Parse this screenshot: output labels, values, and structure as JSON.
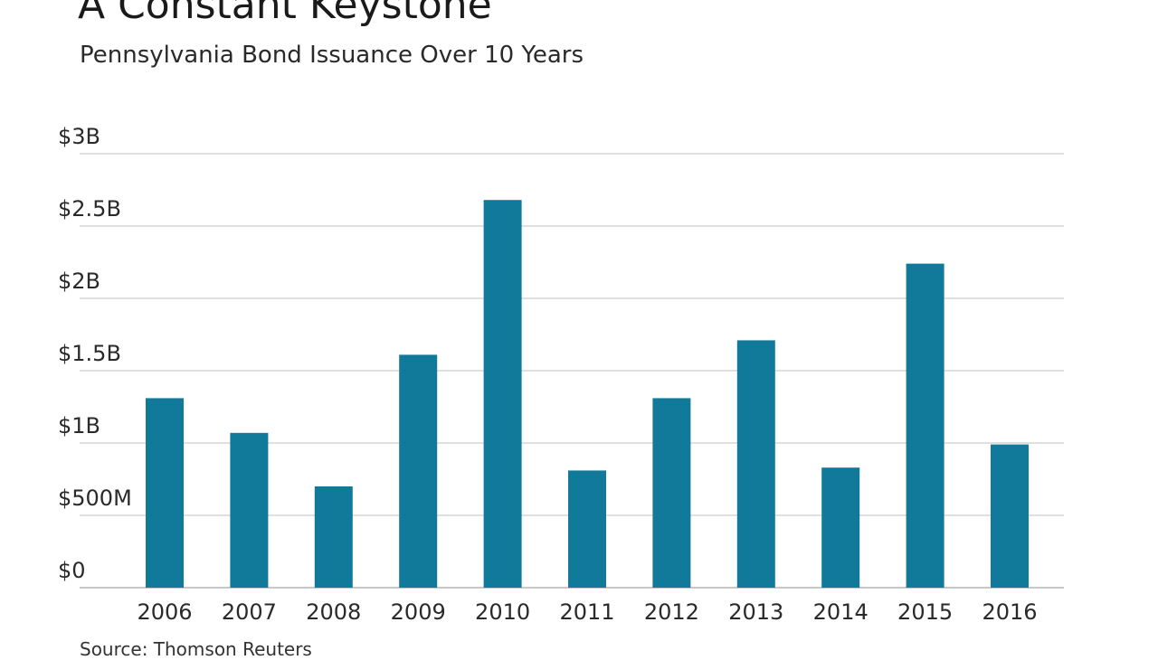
{
  "title": "A Constant Keystone",
  "subtitle": "Pennsylvania Bond Issuance Over 10 Years",
  "source": "Source: Thomson Reuters",
  "colors": {
    "bar": "#117a9a",
    "gridline": "#d6d6d6",
    "baseline": "#c8c8c8",
    "text": "#2a2a2a"
  },
  "chart_data": {
    "type": "bar",
    "title": "A Constant Keystone",
    "subtitle": "Pennsylvania Bond Issuance Over 10 Years",
    "xlabel": "",
    "ylabel": "",
    "categories": [
      "2006",
      "2007",
      "2008",
      "2009",
      "2010",
      "2011",
      "2012",
      "2013",
      "2014",
      "2015",
      "2016"
    ],
    "values": [
      1.31,
      1.07,
      0.7,
      1.61,
      2.68,
      0.81,
      1.31,
      1.71,
      0.83,
      2.24,
      0.99
    ],
    "unit": "billions USD",
    "ylim": [
      0,
      3
    ],
    "yticks": [
      {
        "value": 0,
        "label": "$0"
      },
      {
        "value": 0.5,
        "label": "$500M"
      },
      {
        "value": 1,
        "label": "$1B"
      },
      {
        "value": 1.5,
        "label": "$1.5B"
      },
      {
        "value": 2,
        "label": "$2B"
      },
      {
        "value": 2.5,
        "label": "$2.5B"
      },
      {
        "value": 3,
        "label": "$3B"
      }
    ],
    "grid": true,
    "legend": "none"
  }
}
